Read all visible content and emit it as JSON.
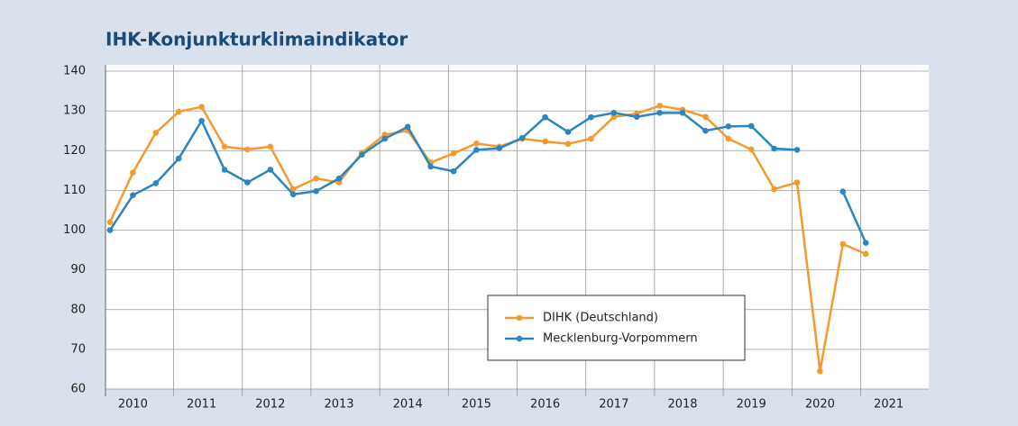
{
  "chart_data": {
    "type": "line",
    "title": "IHK-Konjunkturklimaindikator",
    "categories": [
      "2010",
      null,
      null,
      "2011",
      null,
      null,
      "2012",
      null,
      null,
      "2013",
      null,
      null,
      "2014",
      null,
      null,
      "2015",
      null,
      null,
      "2016",
      null,
      null,
      "2017",
      null,
      null,
      "2018",
      null,
      null,
      "2019",
      null,
      null,
      "2020",
      null,
      null,
      "2021"
    ],
    "series": [
      {
        "name": "DIHK (Deutschland)",
        "color": "#f39a2e",
        "values": [
          102,
          114.5,
          124.5,
          129.8,
          131,
          121,
          120.3,
          121,
          110.3,
          113,
          112,
          119.5,
          124,
          125,
          117,
          119.3,
          121.8,
          121,
          123,
          122.3,
          121.7,
          123,
          128.5,
          129.3,
          131.3,
          130.3,
          128.5,
          123,
          120.3,
          110.3,
          112,
          64.5,
          96.5,
          94
        ]
      },
      {
        "name": "Mecklenburg-Vorpommern",
        "color": "#2a86c0",
        "values": [
          100,
          108.8,
          111.8,
          118,
          127.5,
          115.2,
          112,
          115.2,
          109,
          109.8,
          113,
          119,
          123,
          126,
          116,
          114.8,
          120.2,
          120.6,
          123.2,
          128.4,
          124.7,
          128.4,
          129.5,
          128.5,
          129.5,
          129.5,
          125,
          126.1,
          126.2,
          120.5,
          120.2,
          null,
          109.7,
          96.8
        ]
      }
    ],
    "ylim": [
      60,
      140
    ],
    "yticks": [
      60,
      70,
      80,
      90,
      100,
      110,
      120,
      130,
      140
    ],
    "grid": true
  }
}
